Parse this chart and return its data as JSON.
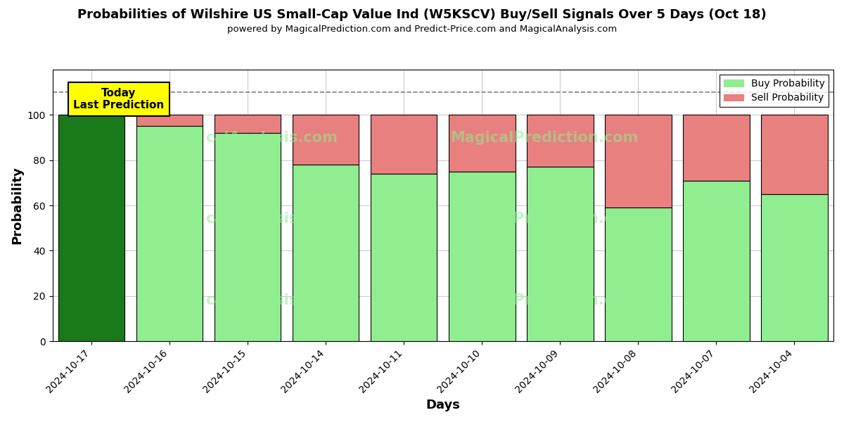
{
  "dates": [
    "2024-10-17",
    "2024-10-16",
    "2024-10-15",
    "2024-10-14",
    "2024-10-11",
    "2024-10-10",
    "2024-10-09",
    "2024-10-08",
    "2024-10-07",
    "2024-10-04"
  ],
  "buy_values": [
    100,
    95,
    92,
    78,
    74,
    75,
    77,
    59,
    71,
    65
  ],
  "sell_values": [
    0,
    5,
    8,
    22,
    26,
    25,
    23,
    41,
    29,
    35
  ],
  "today_bar_color": "#1a7a1a",
  "buy_bar_color": "#90ee90",
  "sell_bar_color": "#e88080",
  "title": "Probabilities of Wilshire US Small-Cap Value Ind (W5KSCV) Buy/Sell Signals Over 5 Days (Oct 18)",
  "subtitle": "powered by MagicalPrediction.com and Predict-Price.com and MagicalAnalysis.com",
  "xlabel": "Days",
  "ylabel": "Probability",
  "ylim": [
    0,
    120
  ],
  "yticks": [
    0,
    20,
    40,
    60,
    80,
    100
  ],
  "dashed_line_y": 110,
  "legend_buy": "Buy Probability",
  "legend_sell": "Sell Probability",
  "annotation_text": "Today\nLast Prediction",
  "bg_color": "#ffffff",
  "grid_color": "#cccccc",
  "bar_width": 0.85
}
